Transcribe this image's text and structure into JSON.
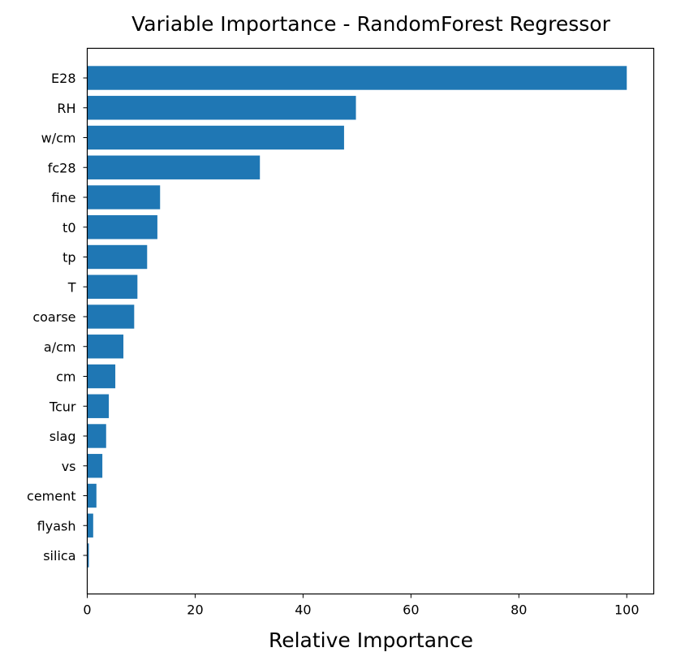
{
  "chart_data": {
    "type": "bar",
    "orientation": "horizontal",
    "title": "Variable Importance - RandomForest Regressor",
    "xlabel": "Relative Importance",
    "ylabel": "",
    "xlim": [
      0,
      105
    ],
    "xticks": [
      0,
      20,
      40,
      60,
      80,
      100
    ],
    "grid": false,
    "bar_color": "#1f77b4",
    "categories": [
      "E28",
      "RH",
      "w/cm",
      "fc28",
      "fine",
      "t0",
      "tp",
      "T",
      "coarse",
      "a/cm",
      "cm",
      "Tcur",
      "slag",
      "vs",
      "cement",
      "flyash",
      "silica"
    ],
    "values": [
      100,
      49.8,
      47.6,
      32.0,
      13.5,
      13.0,
      11.1,
      9.3,
      8.7,
      6.7,
      5.2,
      4.0,
      3.5,
      2.8,
      1.7,
      1.1,
      0.3
    ]
  }
}
